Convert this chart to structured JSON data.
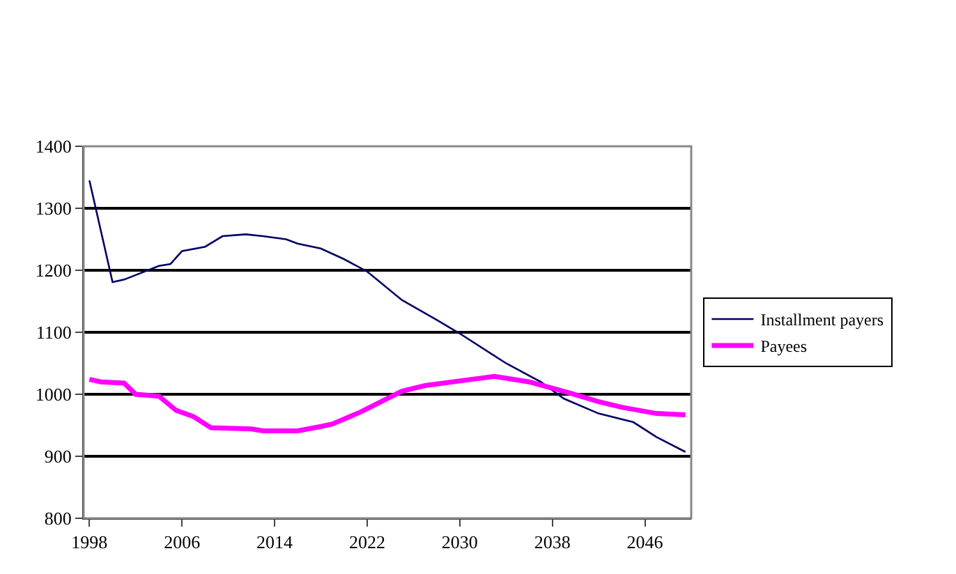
{
  "chart_data": {
    "type": "line",
    "xlim": [
      1997.5,
      2050
    ],
    "xticks": [
      1998,
      2006,
      2014,
      2022,
      2030,
      2038,
      2046
    ],
    "ylim": [
      800,
      1400
    ],
    "yticks": [
      800,
      900,
      1000,
      1100,
      1200,
      1300,
      1400
    ],
    "grid": "y",
    "legend": "right",
    "line_style": "solid",
    "marker": "none",
    "series": [
      {
        "name": "Installment payers",
        "color": "#000066",
        "x": [
          1998,
          2000,
          2001,
          2004,
          2005,
          2006,
          2008,
          2009.5,
          2011.5,
          2013,
          2015,
          2016,
          2018,
          2020,
          2022,
          2025,
          2028,
          2030,
          2034,
          2037,
          2039,
          2042,
          2045,
          2047,
          2049.5
        ],
        "values": [
          1345,
          1181,
          1185,
          1207,
          1210,
          1231,
          1238,
          1255,
          1258,
          1255,
          1250,
          1243,
          1235,
          1218,
          1198,
          1152,
          1120,
          1098,
          1050,
          1020,
          993,
          969,
          955,
          931,
          907
        ]
      },
      {
        "name": "Payees",
        "color": "#ff00ff",
        "x": [
          1998,
          1999,
          2001,
          2002,
          2004,
          2005.5,
          2007,
          2008.5,
          2012,
          2013,
          2016,
          2018,
          2019,
          2021.5,
          2025,
          2027,
          2031,
          2033,
          2036,
          2039.5,
          2042,
          2044,
          2047,
          2049.5
        ],
        "values": [
          1024,
          1020,
          1018,
          1000,
          997,
          974,
          964,
          946,
          944,
          941,
          941,
          948,
          952,
          972,
          1005,
          1014,
          1024,
          1029,
          1020,
          1002,
          988,
          979,
          969,
          967
        ]
      }
    ]
  }
}
